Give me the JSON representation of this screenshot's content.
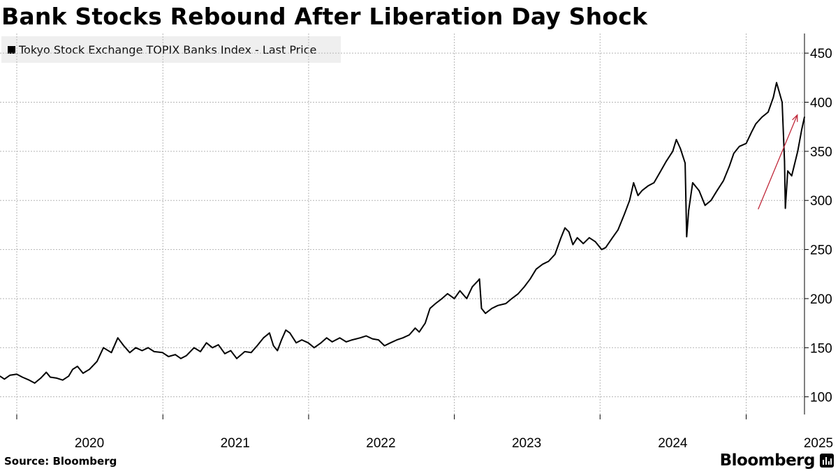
{
  "title": "Bank Stocks Rebound After Liberation Day Shock",
  "legend": {
    "label": "Tokyo Stock Exchange TOPIX Banks Index - Last Price",
    "color": "#000000"
  },
  "footer": {
    "source": "Source: Bloomberg",
    "brand": "Bloomberg",
    "brand_icon": "bloomberg-terminal-icon"
  },
  "annotation": {
    "type": "arrow",
    "color": "#c0283a",
    "from": [
      "2025-01-31",
      291
    ],
    "to": [
      "2025-05-09",
      387
    ]
  },
  "chart_data": {
    "type": "line",
    "title": "Bank Stocks Rebound After Liberation Day Shock",
    "xlabel": "",
    "ylabel": "",
    "x_ticks": [
      "2020",
      "2021",
      "2022",
      "2023",
      "2024",
      "2025"
    ],
    "y_ticks": [
      100,
      150,
      200,
      250,
      300,
      350,
      400,
      450
    ],
    "ylim": [
      82,
      470
    ],
    "xlim": [
      "2019-11-20",
      "2025-05-27"
    ],
    "grid": true,
    "legend_position": "top-left",
    "y_axis_side": "right",
    "series": [
      {
        "name": "Tokyo Stock Exchange TOPIX Banks Index - Last Price",
        "color": "#000000",
        "points": [
          [
            "2019-11-20",
            121
          ],
          [
            "2019-12-01",
            118
          ],
          [
            "2019-12-15",
            122
          ],
          [
            "2020-01-01",
            123
          ],
          [
            "2020-01-15",
            120
          ],
          [
            "2020-02-01",
            117
          ],
          [
            "2020-02-15",
            114
          ],
          [
            "2020-03-01",
            119
          ],
          [
            "2020-03-15",
            125
          ],
          [
            "2020-03-25",
            120
          ],
          [
            "2020-04-10",
            119
          ],
          [
            "2020-04-25",
            117
          ],
          [
            "2020-05-10",
            121
          ],
          [
            "2020-05-20",
            128
          ],
          [
            "2020-06-01",
            131
          ],
          [
            "2020-06-15",
            124
          ],
          [
            "2020-07-01",
            128
          ],
          [
            "2020-07-20",
            136
          ],
          [
            "2020-08-05",
            150
          ],
          [
            "2020-08-25",
            145
          ],
          [
            "2020-09-10",
            160
          ],
          [
            "2020-09-25",
            152
          ],
          [
            "2020-10-10",
            145
          ],
          [
            "2020-10-25",
            150
          ],
          [
            "2020-11-10",
            147
          ],
          [
            "2020-11-25",
            150
          ],
          [
            "2020-12-10",
            146
          ],
          [
            "2020-12-31",
            145
          ],
          [
            "2021-01-15",
            141
          ],
          [
            "2021-02-01",
            143
          ],
          [
            "2021-02-15",
            139
          ],
          [
            "2021-03-01",
            142
          ],
          [
            "2021-03-20",
            150
          ],
          [
            "2021-04-05",
            146
          ],
          [
            "2021-04-20",
            155
          ],
          [
            "2021-05-05",
            150
          ],
          [
            "2021-05-20",
            153
          ],
          [
            "2021-06-05",
            144
          ],
          [
            "2021-06-20",
            147
          ],
          [
            "2021-07-05",
            139
          ],
          [
            "2021-07-25",
            146
          ],
          [
            "2021-08-10",
            145
          ],
          [
            "2021-08-25",
            152
          ],
          [
            "2021-09-10",
            160
          ],
          [
            "2021-09-25",
            165
          ],
          [
            "2021-10-05",
            152
          ],
          [
            "2021-10-15",
            147
          ],
          [
            "2021-10-25",
            158
          ],
          [
            "2021-11-05",
            168
          ],
          [
            "2021-11-15",
            165
          ],
          [
            "2021-12-01",
            155
          ],
          [
            "2021-12-15",
            158
          ],
          [
            "2021-12-31",
            155
          ],
          [
            "2022-01-15",
            150
          ],
          [
            "2022-02-01",
            155
          ],
          [
            "2022-02-15",
            160
          ],
          [
            "2022-03-01",
            156
          ],
          [
            "2022-03-20",
            160
          ],
          [
            "2022-04-05",
            156
          ],
          [
            "2022-04-20",
            158
          ],
          [
            "2022-05-10",
            160
          ],
          [
            "2022-05-25",
            162
          ],
          [
            "2022-06-10",
            159
          ],
          [
            "2022-06-25",
            158
          ],
          [
            "2022-07-10",
            152
          ],
          [
            "2022-07-25",
            155
          ],
          [
            "2022-08-10",
            158
          ],
          [
            "2022-08-25",
            160
          ],
          [
            "2022-09-10",
            163
          ],
          [
            "2022-09-25",
            170
          ],
          [
            "2022-10-05",
            166
          ],
          [
            "2022-10-20",
            175
          ],
          [
            "2022-11-01",
            190
          ],
          [
            "2022-11-15",
            195
          ],
          [
            "2022-12-01",
            200
          ],
          [
            "2022-12-15",
            205
          ],
          [
            "2023-01-01",
            200
          ],
          [
            "2023-01-15",
            208
          ],
          [
            "2023-02-01",
            200
          ],
          [
            "2023-02-15",
            212
          ],
          [
            "2023-03-01",
            218
          ],
          [
            "2023-03-05",
            220
          ],
          [
            "2023-03-10",
            190
          ],
          [
            "2023-03-20",
            185
          ],
          [
            "2023-04-05",
            190
          ],
          [
            "2023-04-20",
            193
          ],
          [
            "2023-05-10",
            195
          ],
          [
            "2023-05-25",
            200
          ],
          [
            "2023-06-10",
            205
          ],
          [
            "2023-06-25",
            212
          ],
          [
            "2023-07-10",
            220
          ],
          [
            "2023-07-25",
            230
          ],
          [
            "2023-08-10",
            235
          ],
          [
            "2023-08-25",
            238
          ],
          [
            "2023-09-10",
            245
          ],
          [
            "2023-09-25",
            262
          ],
          [
            "2023-10-05",
            272
          ],
          [
            "2023-10-15",
            268
          ],
          [
            "2023-10-25",
            255
          ],
          [
            "2023-11-05",
            262
          ],
          [
            "2023-11-20",
            256
          ],
          [
            "2023-12-05",
            262
          ],
          [
            "2023-12-20",
            258
          ],
          [
            "2024-01-05",
            250
          ],
          [
            "2024-01-15",
            252
          ],
          [
            "2024-02-01",
            262
          ],
          [
            "2024-02-15",
            270
          ],
          [
            "2024-03-01",
            285
          ],
          [
            "2024-03-15",
            300
          ],
          [
            "2024-03-25",
            318
          ],
          [
            "2024-04-05",
            305
          ],
          [
            "2024-04-15",
            310
          ],
          [
            "2024-05-01",
            315
          ],
          [
            "2024-05-15",
            318
          ],
          [
            "2024-06-01",
            330
          ],
          [
            "2024-06-15",
            340
          ],
          [
            "2024-07-01",
            350
          ],
          [
            "2024-07-10",
            362
          ],
          [
            "2024-07-20",
            353
          ],
          [
            "2024-08-01",
            338
          ],
          [
            "2024-08-05",
            263
          ],
          [
            "2024-08-10",
            290
          ],
          [
            "2024-08-20",
            318
          ],
          [
            "2024-09-05",
            310
          ],
          [
            "2024-09-20",
            295
          ],
          [
            "2024-10-05",
            300
          ],
          [
            "2024-10-20",
            310
          ],
          [
            "2024-11-05",
            320
          ],
          [
            "2024-11-20",
            335
          ],
          [
            "2024-12-01",
            348
          ],
          [
            "2024-12-15",
            355
          ],
          [
            "2025-01-01",
            358
          ],
          [
            "2025-01-15",
            370
          ],
          [
            "2025-01-25",
            378
          ],
          [
            "2025-02-10",
            385
          ],
          [
            "2025-02-25",
            390
          ],
          [
            "2025-03-10",
            405
          ],
          [
            "2025-03-18",
            420
          ],
          [
            "2025-03-25",
            410
          ],
          [
            "2025-04-01",
            400
          ],
          [
            "2025-04-07",
            340
          ],
          [
            "2025-04-09",
            292
          ],
          [
            "2025-04-15",
            330
          ],
          [
            "2025-04-25",
            325
          ],
          [
            "2025-05-10",
            350
          ],
          [
            "2025-05-20",
            372
          ],
          [
            "2025-05-27",
            385
          ]
        ]
      }
    ]
  }
}
